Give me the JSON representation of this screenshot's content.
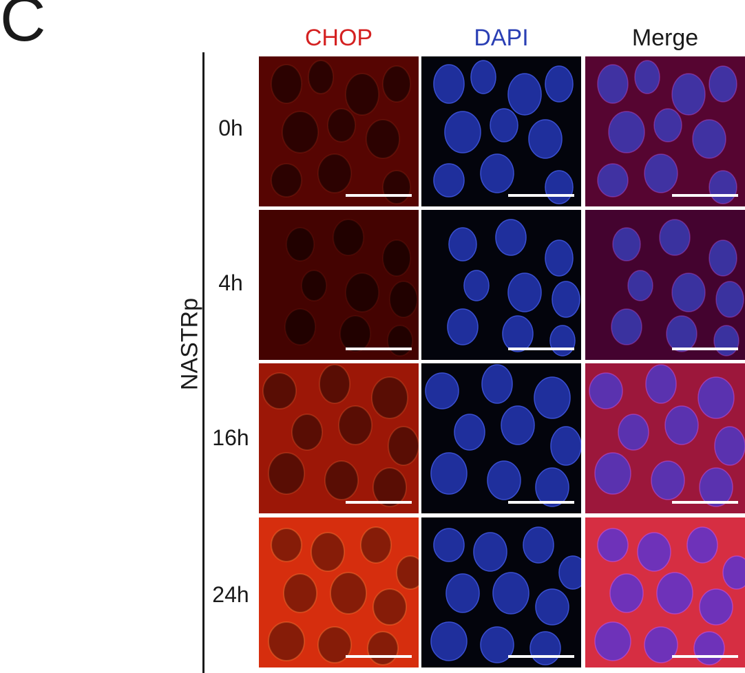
{
  "panel_label": "C",
  "columns": [
    "CHOP",
    "DAPI",
    "Merge"
  ],
  "column_colors": [
    "#d42121",
    "#2a3fb4",
    "#1a1a1a"
  ],
  "group_label": "NASTRp",
  "rows": [
    {
      "label": "0h",
      "chop_intensity": 0.3
    },
    {
      "label": "4h",
      "chop_intensity": 0.22
    },
    {
      "label": "16h",
      "chop_intensity": 0.62
    },
    {
      "label": "24h",
      "chop_intensity": 0.88
    }
  ],
  "scale_bar": true
}
